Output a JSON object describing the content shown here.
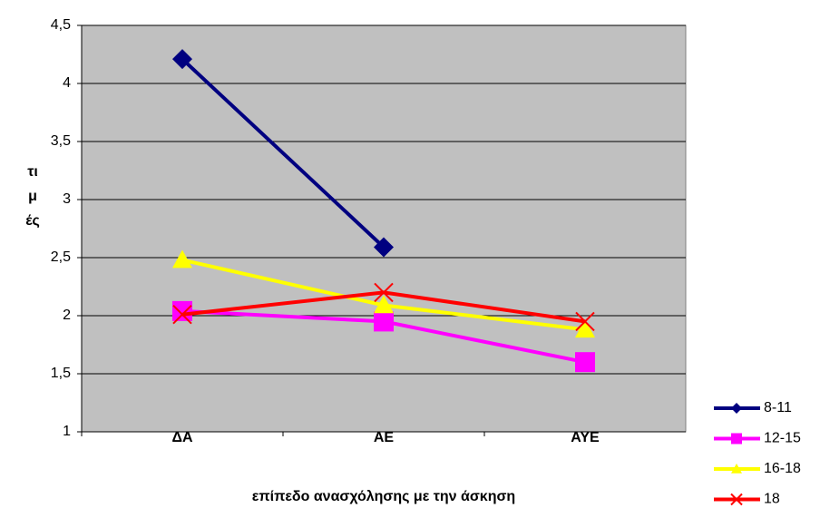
{
  "chart_data": {
    "type": "line",
    "x_label": "επίπεδο ανασχόλησης με την άσκηση",
    "y_label": "τιμές",
    "categories": [
      "ΔΑ",
      "ΑΕ",
      "ΑΥΕ"
    ],
    "series": [
      {
        "name": "8-11",
        "color": "#000080",
        "marker": "diamond",
        "values": [
          4.21,
          2.59,
          null
        ]
      },
      {
        "name": "12-15",
        "color": "#ff00ff",
        "marker": "square",
        "values": [
          2.04,
          1.95,
          1.6
        ]
      },
      {
        "name": "16-18",
        "color": "#ffff00",
        "marker": "triangle",
        "values": [
          2.48,
          2.09,
          1.88
        ]
      },
      {
        "name": "18",
        "color": "#ff0000",
        "marker": "x",
        "values": [
          2.01,
          2.2,
          1.95
        ]
      }
    ],
    "ylim": [
      1,
      4.5
    ],
    "yticks": [
      1,
      {
        "value": 1.5,
        "label": "1,5"
      },
      2,
      {
        "value": 2.5,
        "label": "2,5"
      },
      3,
      {
        "value": 3.5,
        "label": "3,5"
      },
      4,
      {
        "value": 4.5,
        "label": "4,5"
      }
    ],
    "grid": true,
    "plot_background": "#c0c0c0",
    "legend": "bottom-right"
  }
}
